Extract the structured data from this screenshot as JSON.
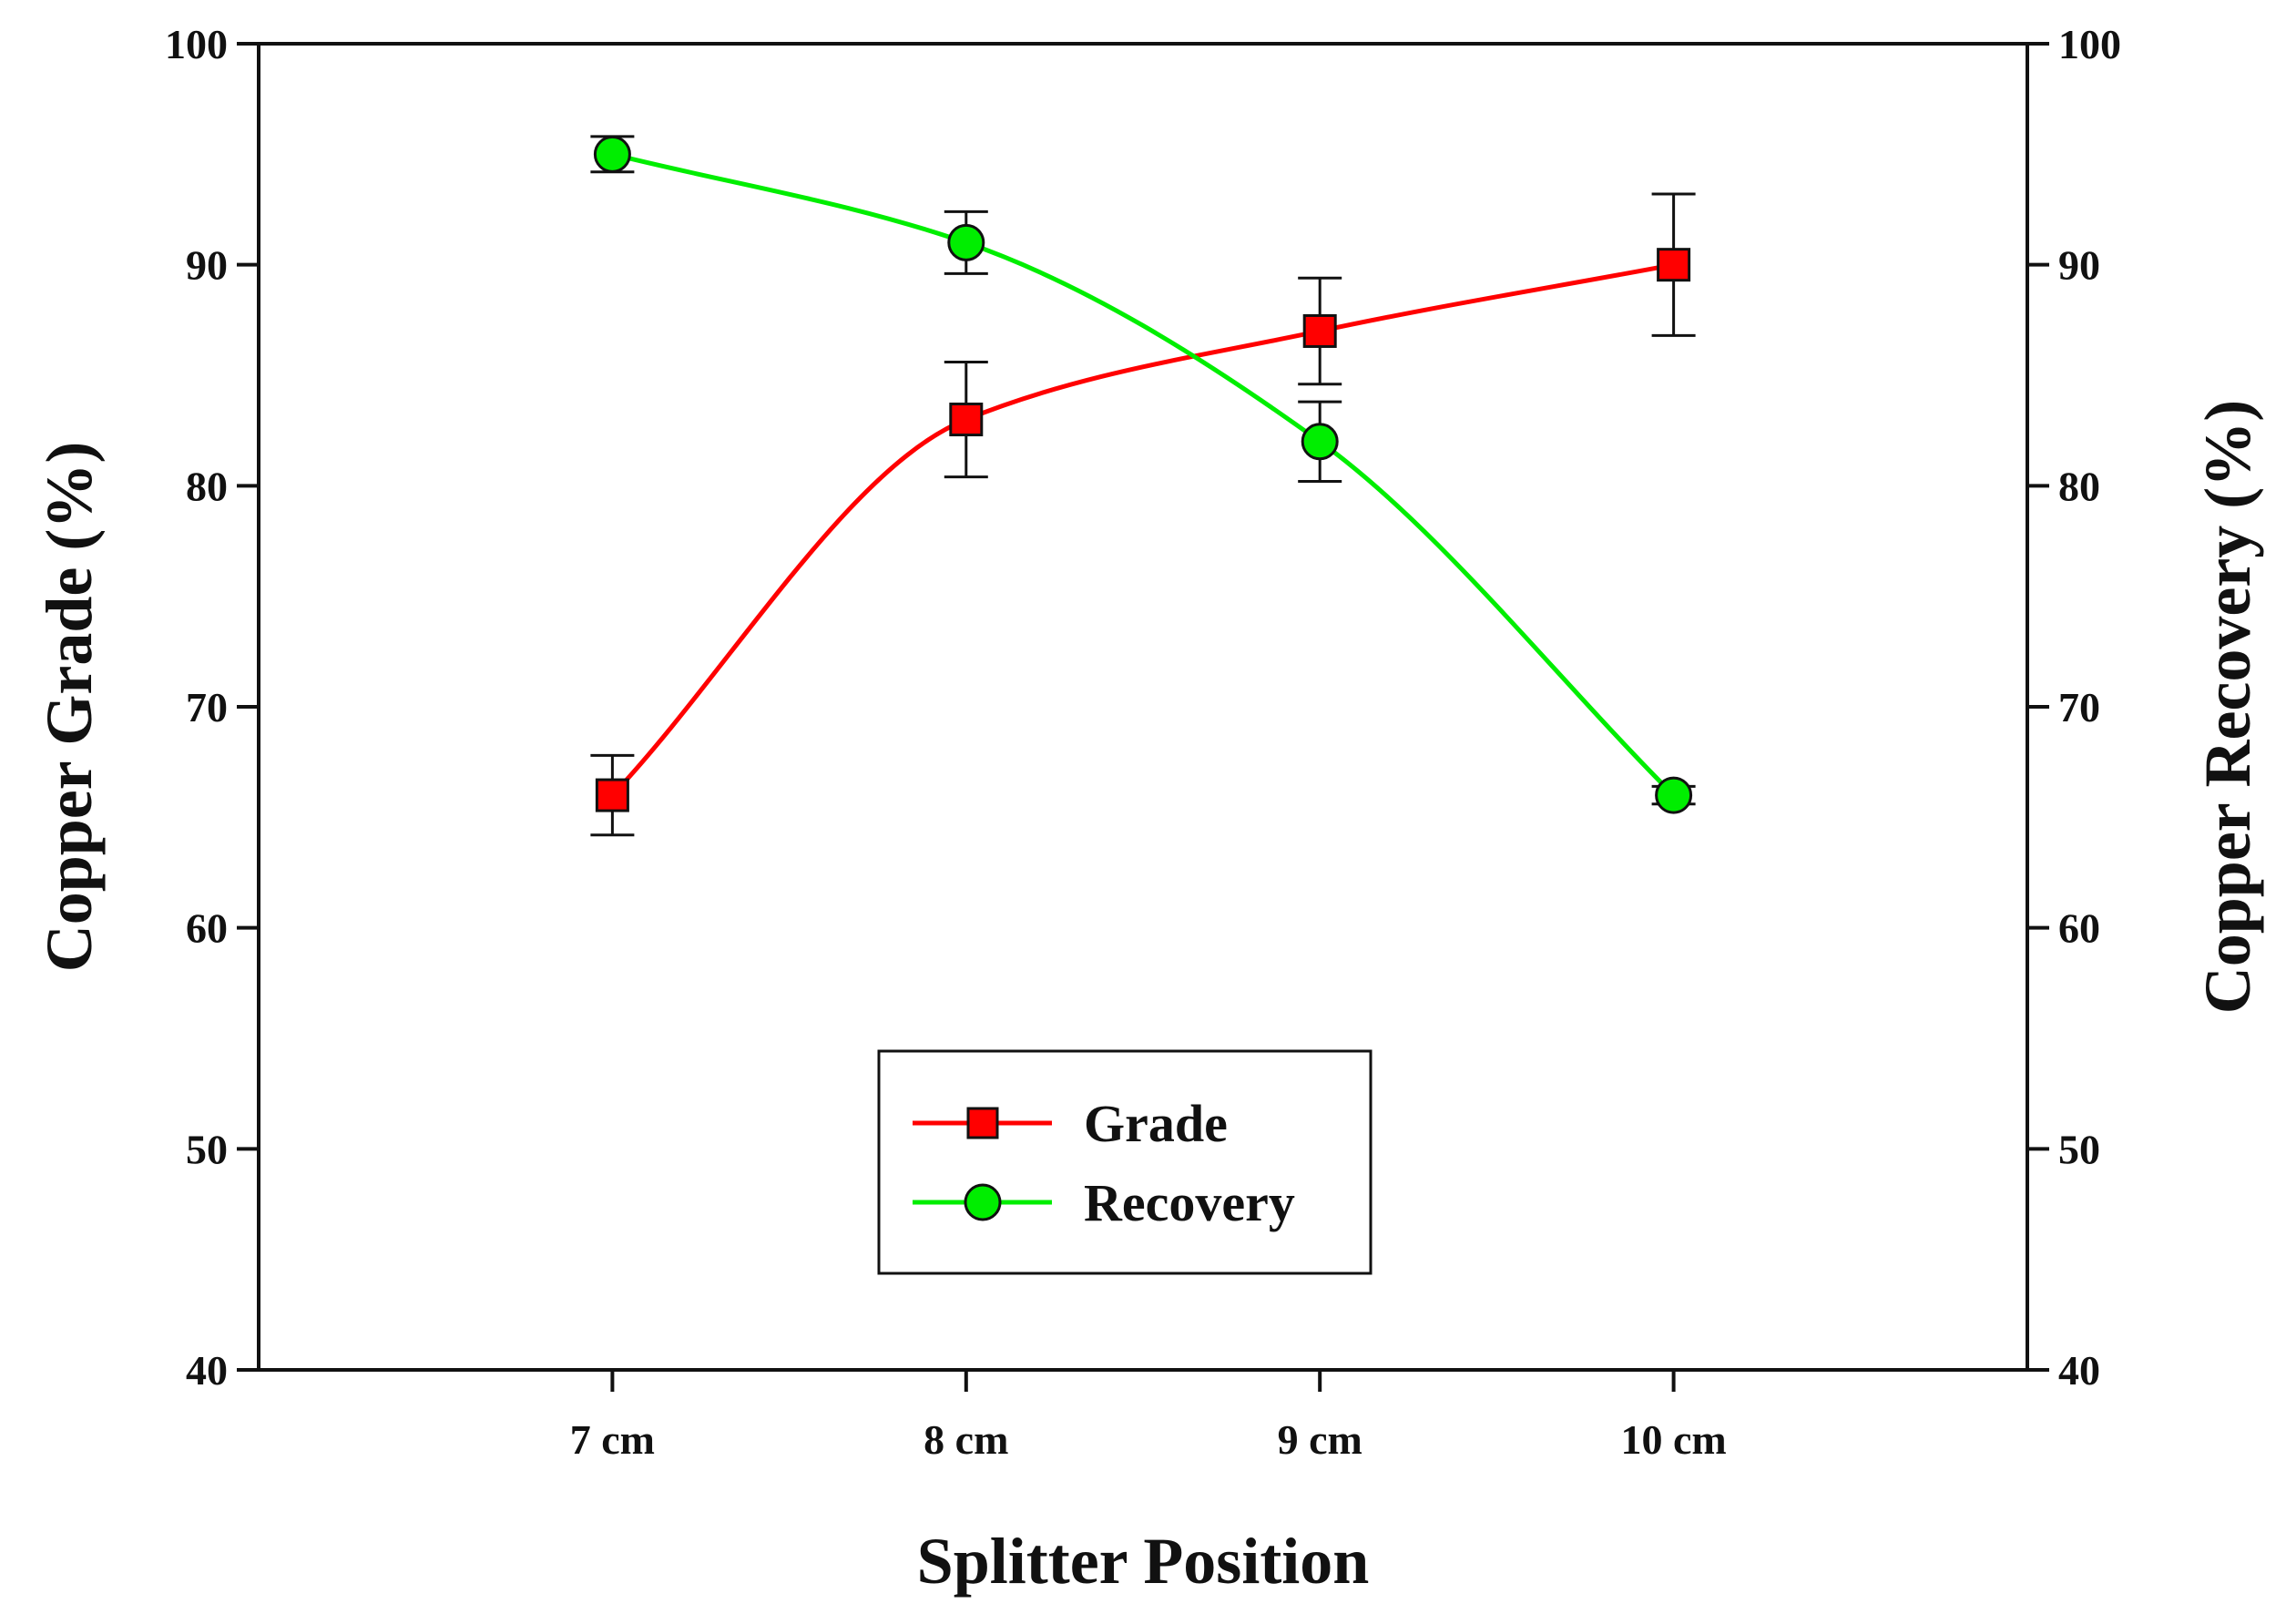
{
  "chart_data": {
    "type": "line",
    "title": "",
    "xlabel": "Splitter Position",
    "ylabel_left": "Copper Grade (%)",
    "ylabel_right": "Copper Recovery (%)",
    "categories": [
      "7 cm",
      "8 cm",
      "9 cm",
      "10 cm"
    ],
    "ylim": [
      40,
      100
    ],
    "yticks": [
      40,
      50,
      60,
      70,
      80,
      90,
      100
    ],
    "yticks_right": [
      40,
      50,
      60,
      70,
      80,
      90,
      100
    ],
    "grid": false,
    "legend_position": "bottom-center",
    "series": [
      {
        "name": "Grade",
        "axis": "left",
        "marker": "square",
        "color": "#ff0000",
        "values": [
          66,
          83,
          87,
          90
        ],
        "errors": [
          1.8,
          2.6,
          2.4,
          3.2
        ]
      },
      {
        "name": "Recovery",
        "axis": "right",
        "marker": "circle",
        "color": "#00ee00",
        "values": [
          95,
          91,
          82,
          66
        ],
        "errors": [
          0.8,
          1.4,
          1.8,
          0.4
        ]
      }
    ]
  }
}
